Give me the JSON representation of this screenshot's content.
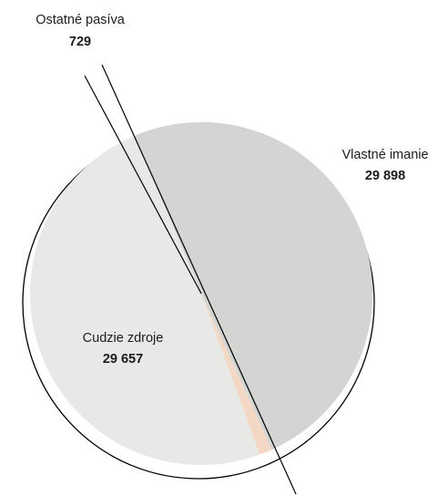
{
  "chart_data": {
    "type": "pie",
    "slices": [
      {
        "label": "Vlastné imanie",
        "value": 29898,
        "display": "29 898",
        "color": "#d3d5d2"
      },
      {
        "label": "Ostatné pasíva",
        "value": 729,
        "display": "729",
        "color": "#f3d9c5"
      },
      {
        "label": "Cudzie zdroje",
        "value": 29657,
        "display": "29 657",
        "color": "#e8e8e6"
      }
    ]
  }
}
